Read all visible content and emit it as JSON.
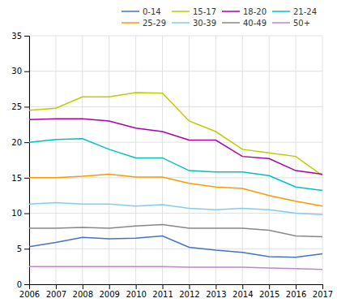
{
  "chart_data": {
    "type": "line",
    "x": [
      2006,
      2007,
      2008,
      2009,
      2010,
      2011,
      2012,
      2013,
      2014,
      2015,
      2016,
      2017
    ],
    "series": [
      {
        "name": "0-14",
        "color": "#4472C4",
        "values": [
          5.3,
          5.9,
          6.6,
          6.4,
          6.5,
          6.8,
          5.2,
          4.8,
          4.5,
          3.9,
          3.8,
          4.3
        ]
      },
      {
        "name": "15-17",
        "color": "#BFCA00",
        "values": [
          24.5,
          24.8,
          26.4,
          26.4,
          27.0,
          26.9,
          23.0,
          21.5,
          19.0,
          18.5,
          18.0,
          15.3
        ]
      },
      {
        "name": "18-20",
        "color": "#AA00AA",
        "values": [
          23.2,
          23.3,
          23.3,
          23.0,
          22.0,
          21.5,
          20.3,
          20.3,
          18.0,
          17.7,
          16.0,
          15.5
        ]
      },
      {
        "name": "21-24",
        "color": "#00C0C0",
        "values": [
          20.0,
          20.4,
          20.5,
          19.0,
          17.8,
          17.8,
          16.0,
          15.8,
          15.8,
          15.3,
          13.7,
          13.2
        ]
      },
      {
        "name": "25-29",
        "color": "#FF9800",
        "values": [
          15.0,
          15.0,
          15.2,
          15.5,
          15.1,
          15.1,
          14.2,
          13.7,
          13.5,
          12.5,
          11.7,
          11.0
        ]
      },
      {
        "name": "30-39",
        "color": "#80CCEE",
        "values": [
          11.3,
          11.5,
          11.3,
          11.3,
          11.0,
          11.2,
          10.7,
          10.5,
          10.7,
          10.5,
          10.0,
          9.8
        ]
      },
      {
        "name": "40-49",
        "color": "#888888",
        "values": [
          7.9,
          7.9,
          8.0,
          7.9,
          8.2,
          8.4,
          7.9,
          7.9,
          7.9,
          7.6,
          6.8,
          6.7
        ]
      },
      {
        "name": "50+",
        "color": "#BB88CC",
        "values": [
          2.5,
          2.5,
          2.5,
          2.5,
          2.5,
          2.5,
          2.4,
          2.4,
          2.4,
          2.3,
          2.2,
          2.1
        ]
      }
    ],
    "xlim": [
      2006,
      2017
    ],
    "xticks": [
      2006,
      2007,
      2008,
      2009,
      2010,
      2011,
      2012,
      2013,
      2014,
      2015,
      2016,
      2017
    ],
    "ylim": [
      0,
      35
    ],
    "yticks": [
      0,
      5,
      10,
      15,
      20,
      25,
      30,
      35
    ],
    "grid": true,
    "legend": "upper right"
  }
}
